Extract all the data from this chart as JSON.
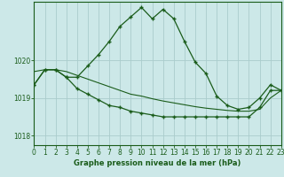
{
  "xlabel": "Graphe pression niveau de la mer (hPa)",
  "bg_color": "#cce8e8",
  "grid_color": "#aacccc",
  "line_color": "#1a5c1a",
  "xlim": [
    0,
    23
  ],
  "ylim": [
    1017.75,
    1021.55
  ],
  "yticks": [
    1018,
    1019,
    1020
  ],
  "xticks": [
    0,
    1,
    2,
    3,
    4,
    5,
    6,
    7,
    8,
    9,
    10,
    11,
    12,
    13,
    14,
    15,
    16,
    17,
    18,
    19,
    20,
    21,
    22,
    23
  ],
  "series1_x": [
    0,
    1,
    2,
    3,
    4,
    5,
    6,
    7,
    8,
    9,
    10,
    11,
    12,
    13,
    14,
    15,
    16,
    17,
    18,
    19,
    20,
    21,
    22,
    23
  ],
  "series1_y": [
    1019.35,
    1019.75,
    1019.75,
    1019.55,
    1019.55,
    1019.85,
    1020.15,
    1020.5,
    1020.9,
    1021.15,
    1021.4,
    1021.1,
    1021.35,
    1021.1,
    1020.5,
    1019.95,
    1019.65,
    1019.05,
    1018.8,
    1018.7,
    1018.75,
    1019.0,
    1019.35,
    1019.2
  ],
  "series2_x": [
    0,
    1,
    2,
    3,
    4,
    5,
    6,
    7,
    8,
    9,
    10,
    11,
    12,
    13,
    14,
    15,
    16,
    17,
    18,
    19,
    20,
    21,
    22,
    23
  ],
  "series2_y": [
    1019.35,
    1019.75,
    1019.75,
    1019.55,
    1019.25,
    1019.1,
    1018.95,
    1018.8,
    1018.75,
    1018.65,
    1018.6,
    1018.55,
    1018.5,
    1018.5,
    1018.5,
    1018.5,
    1018.5,
    1018.5,
    1018.5,
    1018.5,
    1018.5,
    1018.75,
    1019.2,
    1019.2
  ],
  "series3_x": [
    0,
    1,
    2,
    3,
    4,
    5,
    6,
    7,
    8,
    9,
    10,
    11,
    12,
    13,
    14,
    15,
    16,
    17,
    18,
    19,
    20,
    21,
    22,
    23
  ],
  "series3_y": [
    1019.7,
    1019.75,
    1019.75,
    1019.7,
    1019.6,
    1019.5,
    1019.4,
    1019.3,
    1019.2,
    1019.1,
    1019.05,
    1018.98,
    1018.92,
    1018.87,
    1018.82,
    1018.77,
    1018.73,
    1018.7,
    1018.67,
    1018.65,
    1018.65,
    1018.7,
    1019.0,
    1019.2
  ]
}
